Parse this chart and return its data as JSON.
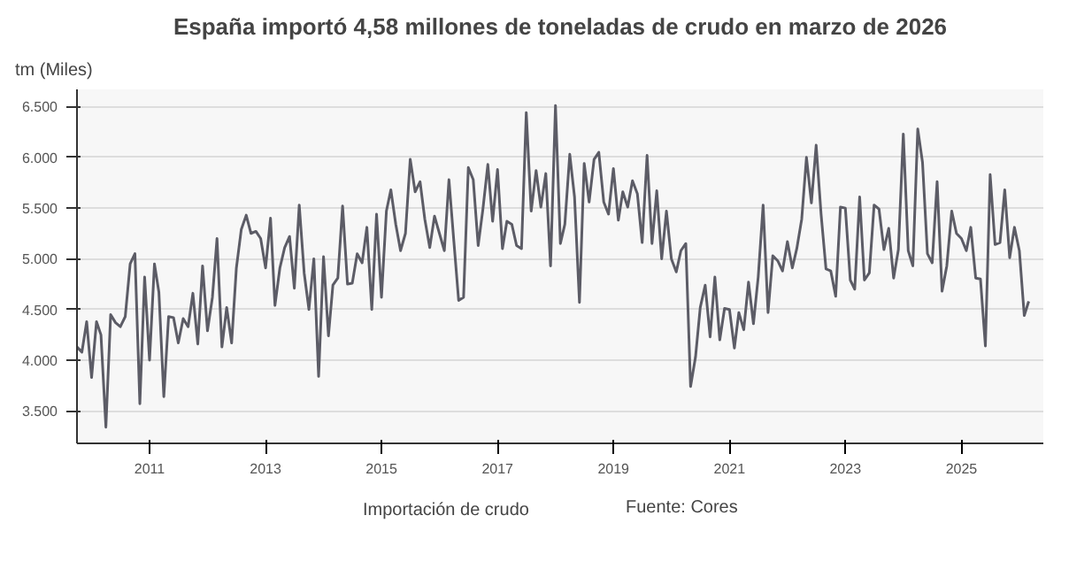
{
  "chart_data": {
    "type": "line",
    "title": "España importó 4,58 millones de toneladas de crudo en marzo de 2026",
    "ylabel": "tm (Miles)",
    "annotations": [
      "Fuente: Cores"
    ],
    "x": [
      "2009-10",
      "2009-11",
      "2009-12",
      "2010-01",
      "2010-02",
      "2010-03",
      "2010-04",
      "2010-05",
      "2010-06",
      "2010-07",
      "2010-08",
      "2010-09",
      "2010-10",
      "2010-11",
      "2010-12",
      "2011-01",
      "2011-02",
      "2011-03",
      "2011-04",
      "2011-05",
      "2011-06",
      "2011-07",
      "2011-08",
      "2011-09",
      "2011-10",
      "2011-11",
      "2011-12",
      "2012-01",
      "2012-02",
      "2012-03",
      "2012-04",
      "2012-05",
      "2012-06",
      "2012-07",
      "2012-08",
      "2012-09",
      "2012-10",
      "2012-11",
      "2012-12",
      "2013-01",
      "2013-02",
      "2013-03",
      "2013-04",
      "2013-05",
      "2013-06",
      "2013-07",
      "2013-08",
      "2013-09",
      "2013-10",
      "2013-11",
      "2013-12",
      "2014-01",
      "2014-02",
      "2014-03",
      "2014-04",
      "2014-05",
      "2014-06",
      "2014-07",
      "2014-08",
      "2014-09",
      "2014-10",
      "2014-11",
      "2014-12",
      "2015-01",
      "2015-02",
      "2015-03",
      "2015-04",
      "2015-05",
      "2015-06",
      "2015-07",
      "2015-08",
      "2015-09",
      "2015-10",
      "2015-11",
      "2015-12",
      "2016-01",
      "2016-02",
      "2016-03",
      "2016-04",
      "2016-05",
      "2016-06",
      "2016-07",
      "2016-08",
      "2016-09",
      "2016-10",
      "2016-11",
      "2016-12",
      "2017-01",
      "2017-02",
      "2017-03",
      "2017-04",
      "2017-05",
      "2017-06",
      "2017-07",
      "2017-08",
      "2017-09",
      "2017-10",
      "2017-11",
      "2017-12",
      "2018-01",
      "2018-02",
      "2018-03",
      "2018-04",
      "2018-05",
      "2018-06",
      "2018-07",
      "2018-08",
      "2018-09",
      "2018-10",
      "2018-11",
      "2018-12",
      "2019-01",
      "2019-02",
      "2019-03",
      "2019-04",
      "2019-05",
      "2019-06",
      "2019-07",
      "2019-08",
      "2019-09",
      "2019-10",
      "2019-11",
      "2019-12",
      "2020-01",
      "2020-02",
      "2020-03",
      "2020-04",
      "2020-05",
      "2020-06",
      "2020-07",
      "2020-08",
      "2020-09",
      "2020-10",
      "2020-11",
      "2020-12",
      "2021-01",
      "2021-02",
      "2021-03",
      "2021-04",
      "2021-05",
      "2021-06",
      "2021-07",
      "2021-08",
      "2021-09",
      "2021-10",
      "2021-11",
      "2021-12",
      "2022-01",
      "2022-02",
      "2022-03",
      "2022-04",
      "2022-05",
      "2022-06",
      "2022-07",
      "2022-08",
      "2022-09",
      "2022-10",
      "2022-11",
      "2022-12",
      "2023-01",
      "2023-02",
      "2023-03",
      "2023-04",
      "2023-05",
      "2023-06",
      "2023-07",
      "2023-08",
      "2023-09",
      "2023-10",
      "2023-11",
      "2023-12",
      "2024-01",
      "2024-02",
      "2024-03",
      "2024-04",
      "2024-05",
      "2024-06",
      "2024-07",
      "2024-08",
      "2024-09",
      "2024-10",
      "2024-11",
      "2024-12",
      "2025-01",
      "2025-02",
      "2025-03",
      "2025-04",
      "2025-05",
      "2025-06",
      "2025-07",
      "2025-08",
      "2025-09",
      "2025-10",
      "2025-11",
      "2025-12",
      "2026-01",
      "2026-02",
      "2026-03"
    ],
    "series": [
      {
        "name": "Importación de crudo",
        "color": "#5c5c66",
        "values": [
          4130,
          4080,
          4380,
          3830,
          4380,
          4250,
          3340,
          4450,
          4370,
          4330,
          4430,
          4950,
          5050,
          3570,
          4820,
          4000,
          4950,
          4670,
          3640,
          4430,
          4420,
          4170,
          4410,
          4330,
          4660,
          4160,
          4930,
          4290,
          4620,
          5200,
          4130,
          4520,
          4170,
          4910,
          5290,
          5430,
          5250,
          5270,
          5200,
          4910,
          5400,
          4540,
          4910,
          5110,
          5220,
          4710,
          5530,
          4860,
          4500,
          5000,
          3840,
          5020,
          4240,
          4740,
          4810,
          5520,
          4750,
          4760,
          5050,
          4960,
          5310,
          4500,
          5440,
          4620,
          5470,
          5680,
          5340,
          5080,
          5250,
          5980,
          5660,
          5760,
          5390,
          5110,
          5420,
          5250,
          5080,
          5780,
          5170,
          4590,
          4620,
          5900,
          5780,
          5130,
          5490,
          5930,
          5370,
          5880,
          5100,
          5370,
          5340,
          5130,
          5100,
          6440,
          5470,
          5870,
          5510,
          5840,
          4930,
          6510,
          5150,
          5340,
          6030,
          5610,
          4570,
          5940,
          5560,
          5980,
          6050,
          5560,
          5440,
          5890,
          5380,
          5660,
          5510,
          5770,
          5640,
          5160,
          6020,
          5150,
          5670,
          5000,
          5470,
          5000,
          4870,
          5080,
          5150,
          3740,
          4030,
          4520,
          4740,
          4230,
          4820,
          4200,
          4510,
          4500,
          4120,
          4470,
          4300,
          4770,
          4360,
          4820,
          5530,
          4470,
          5030,
          4980,
          4880,
          5170,
          4910,
          5100,
          5390,
          6000,
          5550,
          6120,
          5440,
          4900,
          4880,
          4630,
          5510,
          5500,
          4790,
          4700,
          5610,
          4790,
          4860,
          5530,
          5490,
          5090,
          5300,
          4810,
          5090,
          6230,
          5080,
          4930,
          6280,
          5950,
          5050,
          4960,
          5760,
          4680,
          4930,
          5470,
          5250,
          5200,
          5080,
          5310,
          4810,
          4800,
          4140,
          5830,
          5140,
          5160,
          5680,
          5010,
          5310,
          5080,
          4440,
          4580
        ]
      }
    ],
    "xlim": [
      "2009-10",
      "2026-06"
    ],
    "xticks": [
      "2011",
      "2013",
      "2015",
      "2017",
      "2019",
      "2021",
      "2023",
      "2025"
    ],
    "ylim": [
      3180,
      6670
    ],
    "yticks": [
      {
        "value": 3500,
        "label": "3.500"
      },
      {
        "value": 4000,
        "label": "4.000"
      },
      {
        "value": 4500,
        "label": "4.500"
      },
      {
        "value": 5000,
        "label": "5.000"
      },
      {
        "value": 5500,
        "label": "5.500"
      },
      {
        "value": 6000,
        "label": "6.000"
      },
      {
        "value": 6500,
        "label": "6.500"
      }
    ],
    "grid": "y",
    "legend": "bottom",
    "marker": "none",
    "line_style": "solid"
  }
}
